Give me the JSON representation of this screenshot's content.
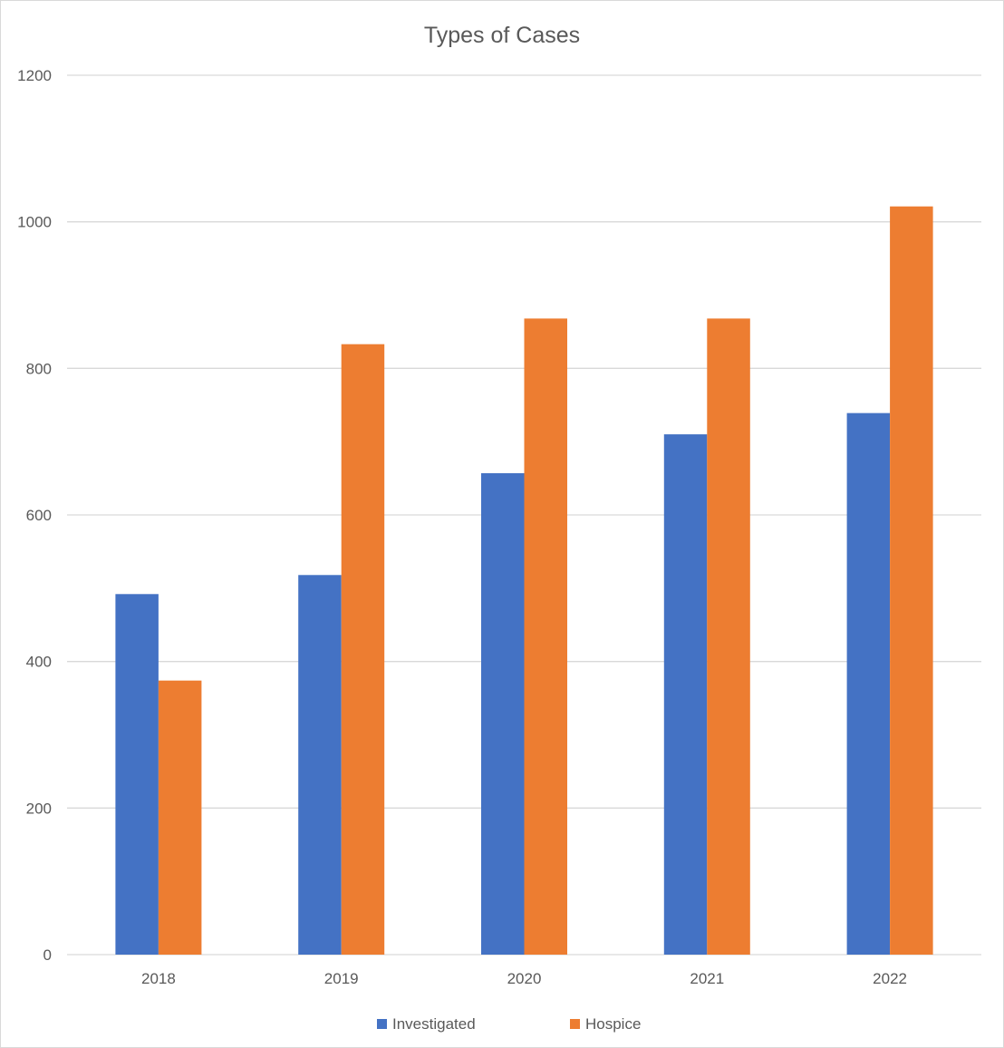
{
  "chart_data": {
    "type": "bar",
    "title": "Types of Cases",
    "xlabel": "",
    "ylabel": "",
    "categories": [
      "2018",
      "2019",
      "2020",
      "2021",
      "2022"
    ],
    "series": [
      {
        "name": "Investigated",
        "color": "#4472C4",
        "values": [
          492,
          518,
          657,
          710,
          739
        ]
      },
      {
        "name": "Hospice",
        "color": "#ED7D31",
        "values": [
          374,
          833,
          868,
          868,
          1021
        ]
      }
    ],
    "ylim": [
      0,
      1200
    ],
    "yticks": [
      "0",
      "200",
      "400",
      "600",
      "800",
      "1000",
      "1200"
    ],
    "grid": true,
    "legend_position": "bottom"
  }
}
